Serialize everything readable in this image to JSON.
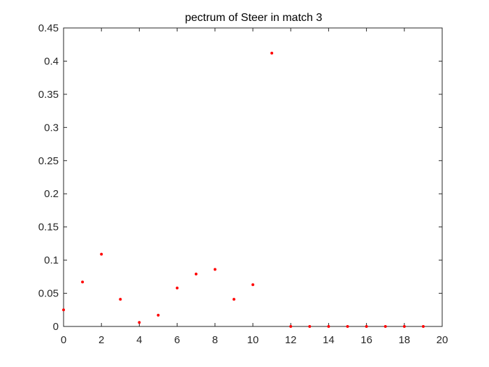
{
  "chart_data": {
    "type": "scatter",
    "title": "pectrum of Steer in match 3",
    "xlabel": "",
    "ylabel": "",
    "xlim": [
      0,
      20
    ],
    "ylim": [
      0,
      0.45
    ],
    "grid": false,
    "x_ticks": [
      "0",
      "2",
      "4",
      "6",
      "8",
      "10",
      "12",
      "14",
      "16",
      "18",
      "20"
    ],
    "y_ticks": [
      "0",
      "0.05",
      "0.1",
      "0.15",
      "0.2",
      "0.25",
      "0.3",
      "0.35",
      "0.4",
      "0.45"
    ],
    "series": [
      {
        "color": "#ff0000",
        "x": [
          0,
          1,
          2,
          3,
          4,
          5,
          6,
          7,
          8,
          9,
          10,
          11,
          12,
          13,
          14,
          15,
          16,
          17,
          18,
          19
        ],
        "y": [
          0.025,
          0.067,
          0.109,
          0.041,
          0.006,
          0.017,
          0.058,
          0.079,
          0.086,
          0.041,
          0.063,
          0.412,
          0.0,
          0.0,
          0.0,
          0.0,
          0.0,
          0.0,
          0.0,
          0.0
        ]
      }
    ]
  }
}
